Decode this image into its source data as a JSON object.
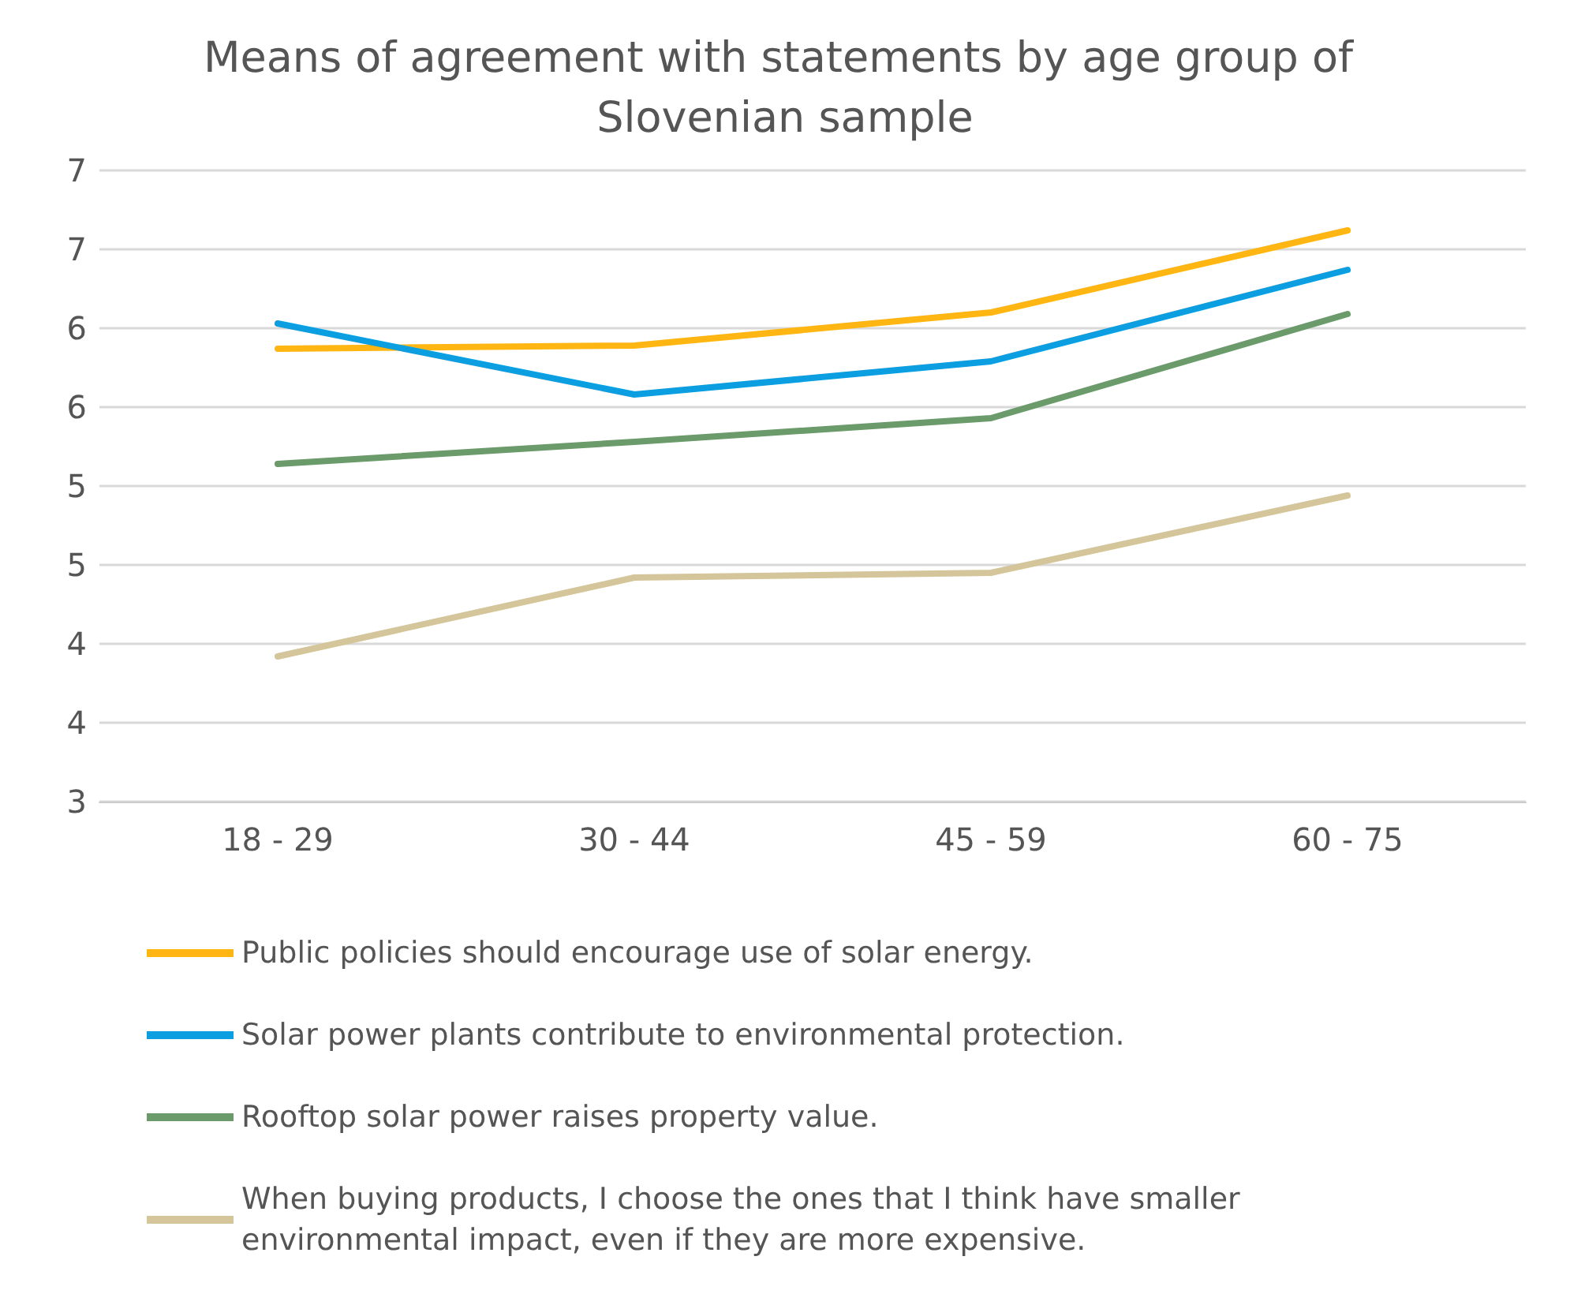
{
  "chart_data": {
    "type": "line",
    "title": "Means of agreement with statements by age group of Slovenian sample",
    "categories": [
      "18 - 29",
      "30 - 44",
      "45 - 59",
      "60 - 75"
    ],
    "series": [
      {
        "name": "Public policies should encourage use of solar energy.",
        "color": "#ffb612",
        "values": [
          5.87,
          5.89,
          6.1,
          6.62
        ]
      },
      {
        "name": "Solar power plants contribute to environmental protection.",
        "color": "#0b9ee0",
        "values": [
          6.03,
          5.58,
          5.79,
          6.37
        ]
      },
      {
        "name": "Rooftop solar power raises property value.",
        "color": "#6b9a6b",
        "values": [
          5.14,
          5.28,
          5.43,
          6.09
        ]
      },
      {
        "name": "When buying products, I choose the ones that I think have smaller environmental impact, even if they are more expensive.",
        "color": "#d4c59a",
        "values": [
          3.92,
          4.42,
          4.45,
          4.94
        ]
      }
    ],
    "ylim": [
      3,
      7
    ],
    "yticks": [
      3,
      {
        "value": 3.5,
        "label": "4"
      },
      4,
      {
        "value": 4.5,
        "label": "5"
      },
      5,
      {
        "value": 5.5,
        "label": "6"
      },
      6,
      {
        "value": 6.5,
        "label": "7"
      },
      7
    ],
    "grid": "y",
    "legend": "bottom",
    "marker": "none",
    "line_style": "solid"
  }
}
